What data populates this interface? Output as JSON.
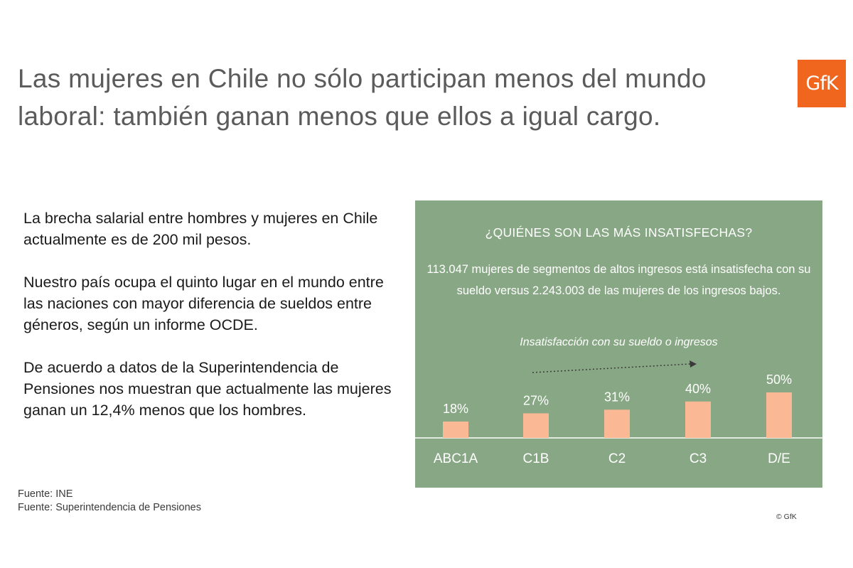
{
  "slide": {
    "title": "Las mujeres en Chile no sólo participan menos del mundo laboral: también ganan menos que ellos a igual cargo.",
    "logo_text": "GfK",
    "paragraphs": [
      "La brecha salarial entre hombres y mujeres en Chile actualmente es de 200 mil pesos.",
      "Nuestro país ocupa el quinto lugar en el mundo entre las naciones con mayor diferencia de sueldos entre géneros, según un informe OCDE.",
      "De acuerdo a datos de la Superintendencia de Pensiones nos muestran que actualmente las mujeres ganan un 12,4% menos que los hombres."
    ],
    "sources": [
      "Fuente: INE",
      "Fuente: Superintendencia de Pensiones"
    ],
    "copyright": "© GfK"
  },
  "panel": {
    "heading": "¿QUIÉNES SON LAS MÁS INSATISFECHAS?",
    "description": "113.047 mujeres de segmentos de altos ingresos está insatisfecha con su sueldo versus 2.243.003 de las mujeres de los ingresos bajos."
  },
  "colors": {
    "panel_bg": "#88a885",
    "bar": "#fbb894",
    "text_on_panel": "#ffffff",
    "brand": "#f0661f"
  },
  "chart_data": {
    "type": "bar",
    "title": "Insatisfacción con su sueldo o ingresos",
    "categories": [
      "ABC1A",
      "C1B",
      "C2",
      "C3",
      "D/E"
    ],
    "values": [
      18,
      27,
      31,
      40,
      50
    ],
    "value_labels": [
      "18%",
      "27%",
      "31%",
      "40%",
      "50%"
    ],
    "unit": "%",
    "ylim": [
      0,
      50
    ],
    "grid": false,
    "legend": "none",
    "trend_arrow": "dotted arrow pointing right"
  }
}
